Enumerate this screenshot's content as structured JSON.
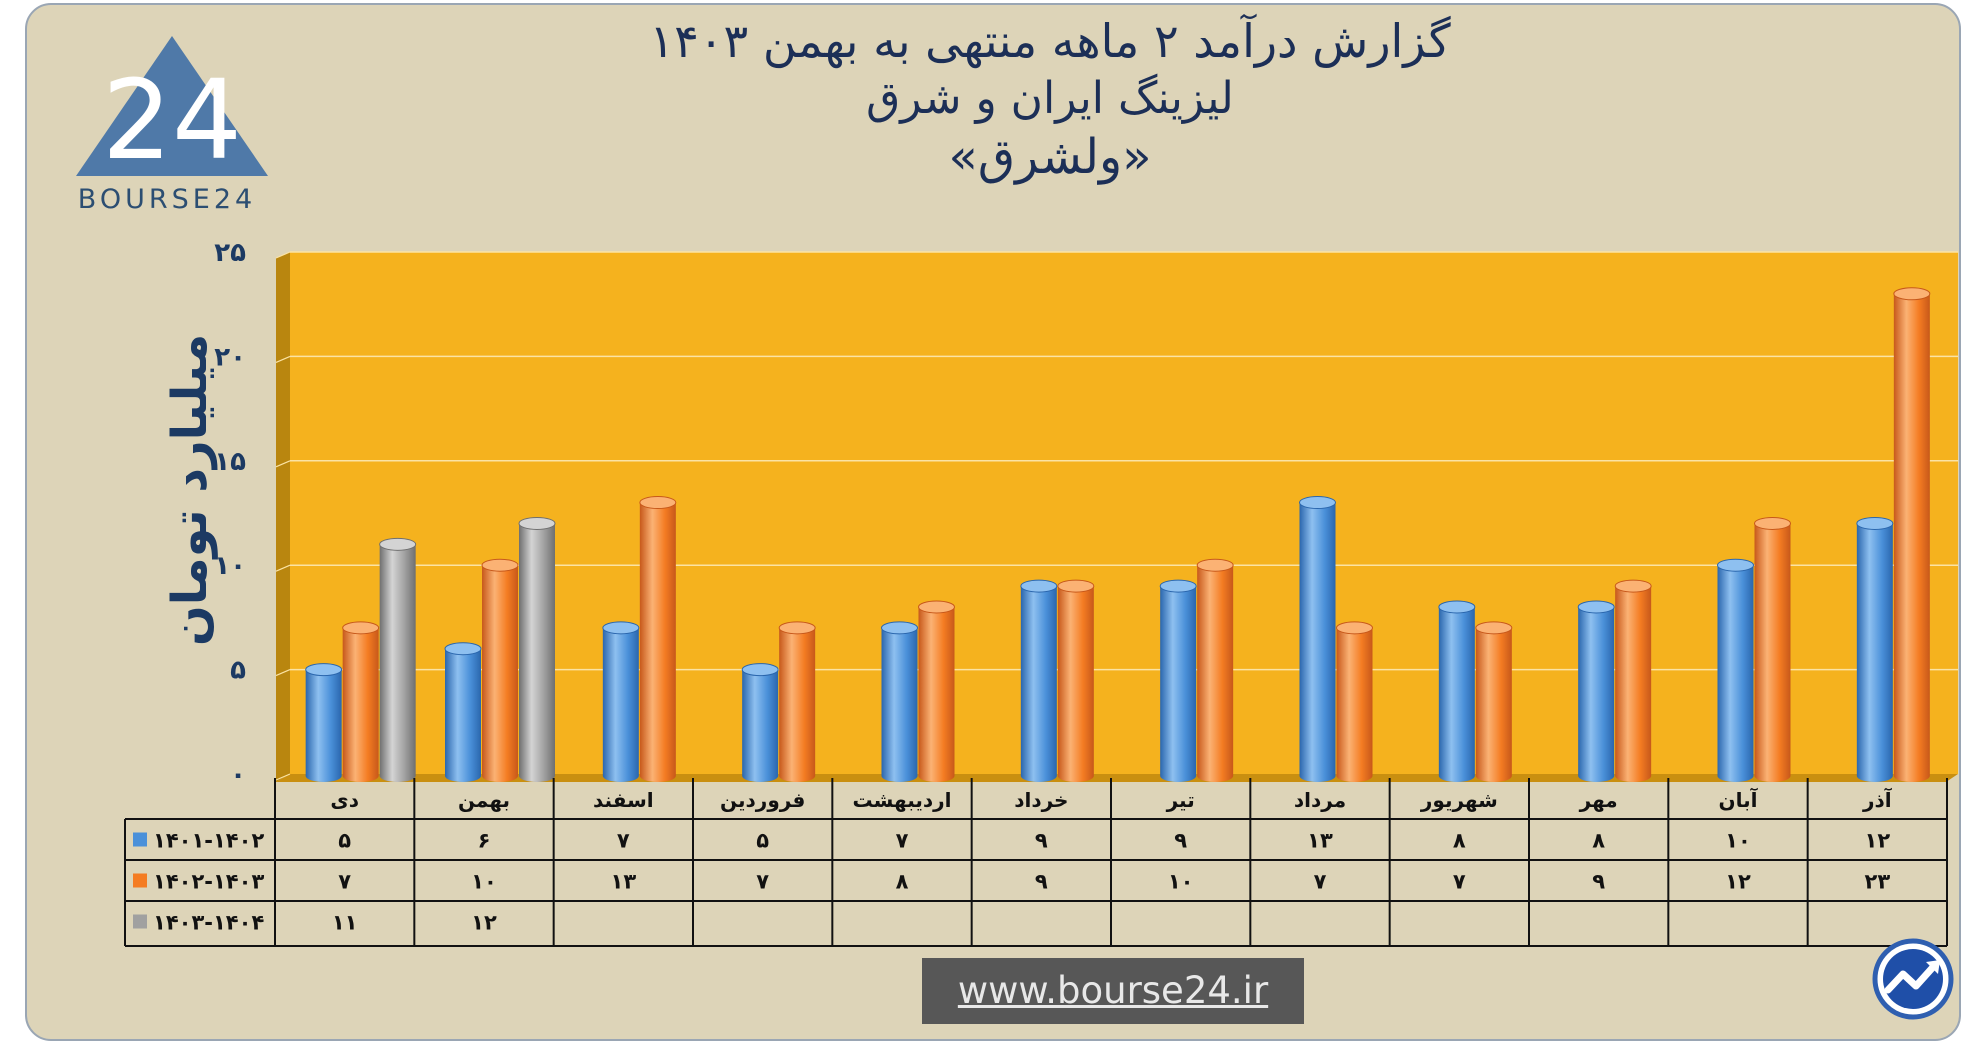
{
  "header": {
    "line1": "گزارش  درآمد ۲ ماهه منتهی به بهمن ۱۴۰۳",
    "line2": "لیزینگ ایران و شرق",
    "line3": "«ولشرق»"
  },
  "logo": {
    "text": "BOURSE24",
    "mark": "24"
  },
  "footer": {
    "website": "www.bourse24.ir",
    "badge_icon": "trend-up-icon"
  },
  "colors": {
    "plot_bg": "#f5b21e",
    "series_1401_1402": "#4a90d9",
    "series_1402_1403": "#f47c22",
    "series_1403_1404": "#a0a0a0"
  },
  "chart_data": {
    "type": "bar",
    "ylabel": "میلیارد تومان",
    "ylim": [
      0,
      25
    ],
    "yticks": [
      "۰",
      "۵",
      "۱۰",
      "۱۵",
      "۲۰",
      "۲۵"
    ],
    "grid": true,
    "categories": [
      "دی",
      "بهمن",
      "اسفند",
      "فروردین",
      "اردیبهشت",
      "خرداد",
      "تیر",
      "مرداد",
      "شهریور",
      "مهر",
      "آبان",
      "آذر"
    ],
    "series": [
      {
        "name": "۱۴۰۱-۱۴۰۲",
        "values": [
          5,
          6,
          7,
          5,
          7,
          9,
          9,
          13,
          8,
          8,
          10,
          12
        ],
        "labels": [
          "۵",
          "۶",
          "۷",
          "۵",
          "۷",
          "۹",
          "۹",
          "۱۳",
          "۸",
          "۸",
          "۱۰",
          "۱۲"
        ]
      },
      {
        "name": "۱۴۰۲-۱۴۰۳",
        "values": [
          7,
          10,
          13,
          7,
          8,
          9,
          10,
          7,
          7,
          9,
          12,
          23
        ],
        "labels": [
          "۷",
          "۱۰",
          "۱۳",
          "۷",
          "۸",
          "۹",
          "۱۰",
          "۷",
          "۷",
          "۹",
          "۱۲",
          "۲۳"
        ]
      },
      {
        "name": "۱۴۰۳-۱۴۰۴",
        "values": [
          11,
          12,
          null,
          null,
          null,
          null,
          null,
          null,
          null,
          null,
          null,
          null
        ],
        "labels": [
          "۱۱",
          "۱۲",
          "",
          "",
          "",
          "",
          "",
          "",
          "",
          "",
          "",
          ""
        ]
      }
    ]
  }
}
